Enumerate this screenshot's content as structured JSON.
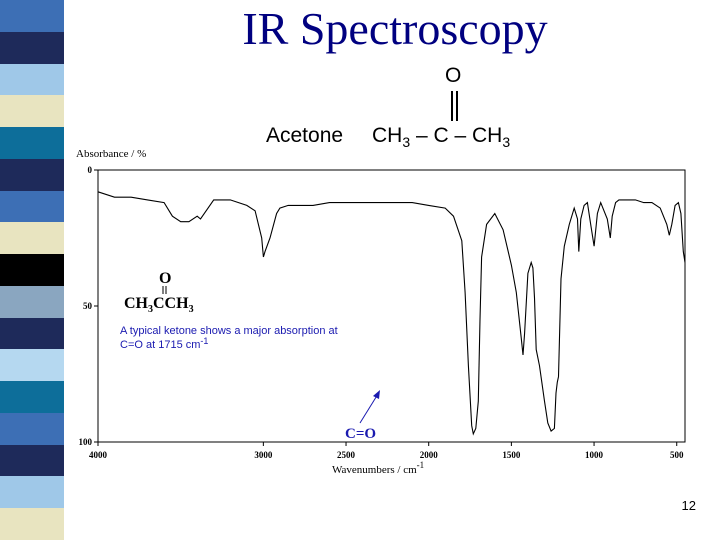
{
  "slide": {
    "title": "IR Spectroscopy",
    "page_number": "12",
    "molecule": {
      "name": "Acetone",
      "formula_parts": [
        "CH",
        "3",
        " – C – CH",
        "3"
      ],
      "oxygen": "O"
    }
  },
  "colors": {
    "title": "#000080",
    "spectrum": "#000000",
    "annotation": "#1a1ab0",
    "strip": [
      "#3d6fb5",
      "#1e2a5a",
      "#9fc8e8",
      "#e8e4c0",
      "#0d6e9a",
      "#1e2a5a",
      "#3d6fb5",
      "#e8e4c0",
      "#000000",
      "#8aa6c0",
      "#1e2a5a",
      "#b5d8f0",
      "#0d6e9a",
      "#3d6fb5",
      "#1e2a5a",
      "#9fc8e8",
      "#e8e4c0"
    ]
  },
  "chart_data": {
    "type": "line",
    "ylabel": "Absorbance / %",
    "xlabel": "Wavenumbers / cm",
    "xlabel_sup": "-1",
    "xlim": [
      4000,
      450
    ],
    "ylim": [
      0,
      100
    ],
    "x_ticks": [
      "4000",
      "3000",
      "2500",
      "2000",
      "1500",
      "1000",
      "500"
    ],
    "x_tick_values": [
      4000,
      3000,
      2500,
      2000,
      1500,
      1000,
      500
    ],
    "y_ticks": [
      "0",
      "50",
      "100"
    ],
    "y_tick_values": [
      0,
      50,
      100
    ],
    "series": [
      {
        "x": [
          4000,
          3900,
          3800,
          3700,
          3600,
          3550,
          3500,
          3450,
          3400,
          3380,
          3300,
          3200,
          3100,
          3050,
          3010,
          3000,
          2990,
          2960,
          2920,
          2900,
          2850,
          2800,
          2700,
          2600,
          2500,
          2400,
          2300,
          2200,
          2100,
          2000,
          1900,
          1850,
          1800,
          1780,
          1760,
          1740,
          1730,
          1715,
          1700,
          1690,
          1680,
          1650,
          1600,
          1550,
          1500,
          1470,
          1440,
          1430,
          1420,
          1400,
          1380,
          1370,
          1360,
          1350,
          1330,
          1300,
          1280,
          1260,
          1240,
          1230,
          1222,
          1215,
          1200,
          1180,
          1150,
          1120,
          1100,
          1092,
          1080,
          1060,
          1040,
          1020,
          1000,
          980,
          960,
          920,
          902,
          890,
          870,
          850,
          800,
          750,
          700,
          650,
          600,
          560,
          545,
          530,
          510,
          490,
          475,
          460,
          450
        ],
        "y": [
          8,
          10,
          10,
          11,
          12,
          17,
          19,
          19,
          17,
          18,
          11,
          11,
          13,
          15,
          25,
          32,
          30,
          25,
          16,
          14,
          13,
          13,
          13,
          12,
          12,
          12,
          12,
          12,
          12,
          13,
          14,
          17,
          26,
          45,
          72,
          94,
          97,
          95,
          85,
          55,
          32,
          20,
          16,
          22,
          35,
          45,
          62,
          68,
          60,
          38,
          34,
          36,
          47,
          66,
          72,
          85,
          93,
          96,
          95,
          82,
          78,
          76,
          40,
          28,
          20,
          14,
          18,
          30,
          18,
          13,
          12,
          20,
          28,
          16,
          12,
          18,
          25,
          17,
          12,
          11,
          11,
          11,
          12,
          12,
          14,
          20,
          24,
          20,
          13,
          12,
          16,
          30,
          34
        ]
      }
    ],
    "annotations": [
      {
        "text_parts": [
          "A typical ketone shows a major absorption at",
          "C=O at 1715 cm",
          "-1"
        ]
      },
      {
        "text": "C=O"
      },
      {
        "structure_o": "O",
        "structure_formula": [
          "CH",
          "3",
          "CCH",
          "3"
        ]
      }
    ],
    "grid": false,
    "legend": "none"
  }
}
